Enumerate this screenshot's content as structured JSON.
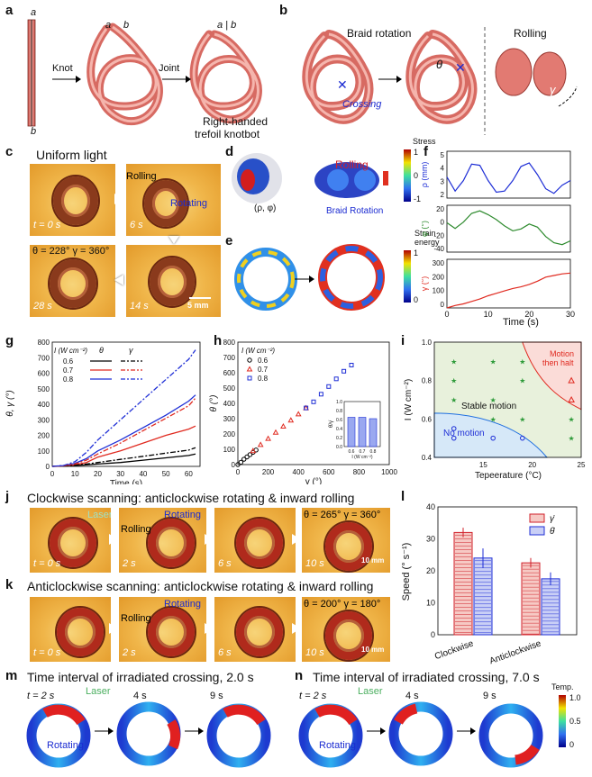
{
  "panels": {
    "a": {
      "label": "a",
      "strand_end_top": "a",
      "strand_end_bottom": "b",
      "knot_end_a": "a",
      "knot_end_b": "b",
      "joint_end": "a | b",
      "step1": "Knot",
      "step2": "Joint",
      "caption_line1": "Right-handed",
      "caption_line2": "trefoil knotbot"
    },
    "b": {
      "label": "b",
      "title1": "Braid rotation",
      "title2": "Rolling",
      "crossing": "Crossing",
      "theta": "θ",
      "gamma": "γ"
    },
    "c": {
      "label": "c",
      "title": "Uniform light",
      "times": [
        "t = 0 s",
        "6 s",
        "28 s",
        "14 s"
      ],
      "rolling": "Rolling",
      "rotating": "Rotating",
      "angles": "θ = 228°  γ = 360°",
      "scale": "5 mm"
    },
    "d": {
      "label": "d",
      "rolling": "Rolling",
      "braid": "Braid Rotation",
      "rho": "(ρ, φ)",
      "colorbar_title": "Stress",
      "cb_top": "1",
      "cb_mid": "0",
      "cb_bot": "-1"
    },
    "e": {
      "label": "e",
      "colorbar_title_1": "Strain",
      "colorbar_title_2": "energy",
      "cb_top": "1",
      "cb_bot": "0"
    },
    "f": {
      "label": "f",
      "xlabel": "Time (s)",
      "rho_label": "ρ (mm)",
      "phi_label": "φ (°)",
      "gamma_label": "γ (°)",
      "xticks": [
        "0",
        "10",
        "20",
        "30"
      ],
      "rho_ticks": [
        "5",
        "4",
        "3",
        "2"
      ],
      "phi_ticks": [
        "20",
        "0",
        "-20",
        "-40"
      ],
      "gamma_ticks": [
        "300",
        "200",
        "100",
        "0"
      ]
    },
    "g": {
      "label": "g",
      "xlabel": "Time (s)",
      "ylabel": "θ, γ (°)",
      "legend_I": "I (W cm⁻²)",
      "legend_theta": "θ",
      "legend_gamma": "γ",
      "legend_vals": [
        "0.6",
        "0.7",
        "0.8"
      ],
      "xticks": [
        "0",
        "10",
        "20",
        "30",
        "40",
        "50",
        "60"
      ],
      "yticks": [
        "800",
        "700",
        "600",
        "500",
        "400",
        "300",
        "200",
        "100",
        "0"
      ]
    },
    "h": {
      "label": "h",
      "xlabel": "γ (°)",
      "ylabel": "θ (°)",
      "legend_I": "I (W cm⁻²)",
      "legend_vals": [
        "0.6",
        "0.7",
        "0.8"
      ],
      "xticks": [
        "0",
        "200",
        "400",
        "600",
        "800",
        "1000"
      ],
      "yticks": [
        "800",
        "700",
        "600",
        "500",
        "400",
        "300",
        "200",
        "100",
        "0"
      ],
      "inset_ylabel": "θ̇/γ̇",
      "inset_xlabel": "I (W cm⁻²)",
      "inset_xticks": [
        "0.6",
        "0.7",
        "0.8"
      ],
      "inset_yticks": [
        "1.0",
        "0.8",
        "0.6",
        "0.4",
        "0.2",
        "0.0"
      ]
    },
    "i": {
      "label": "i",
      "xlabel": "Tepeerature (°C)",
      "ylabel": "I (W cm⁻²)",
      "stable": "Stable motion",
      "nomotion": "No motion",
      "halt1": "Motion",
      "halt2": "then halt",
      "xticks": [
        "15",
        "20",
        "25"
      ],
      "yticks": [
        "1.0",
        "0.8",
        "0.6",
        "0.4"
      ]
    },
    "j": {
      "label": "j",
      "title": "Clockwise scanning: anticlockwise rotating & inward rolling",
      "times": [
        "t = 0 s",
        "2 s",
        "6 s",
        "10 s"
      ],
      "laser": "Laser",
      "rolling": "Rolling",
      "rotating": "Rotating",
      "angles": "θ = 265°  γ = 360°",
      "scale": "10 mm"
    },
    "k": {
      "label": "k",
      "title": "Anticlockwise scanning: anticlockwise rotating & inward rolling",
      "times": [
        "t = 0 s",
        "2 s",
        "6 s",
        "10 s"
      ],
      "rolling": "Rolling",
      "rotating": "Rotating",
      "angles": "θ = 200°  γ = 180°",
      "scale": "10 mm"
    },
    "l": {
      "label": "l",
      "ylabel": "Speed (° s⁻¹)",
      "legend_gamma": "γ̇",
      "legend_theta": "θ̇",
      "xcats": [
        "Clockwise",
        "Anticlockwise"
      ],
      "yticks": [
        "40",
        "30",
        "20",
        "10",
        "0"
      ]
    },
    "m": {
      "label": "m",
      "title": "Time interval of irradiated crossing, 2.0 s",
      "times": [
        "t = 2 s",
        "4 s",
        "9 s"
      ],
      "laser": "Laser",
      "rotating": "Rotating"
    },
    "n": {
      "label": "n",
      "title": "Time interval of irradiated crossing, 7.0 s",
      "times": [
        "t = 2 s",
        "4 s",
        "9 s"
      ],
      "laser": "Laser",
      "rotating": "Rotating",
      "cb_title": "Temp.",
      "cb_ticks": [
        "1.0",
        "0.5",
        "0"
      ]
    }
  },
  "chart_data": [
    {
      "type": "line",
      "panel": "f",
      "xlabel": "Time (s)",
      "xlim": [
        0,
        30
      ],
      "series": [
        {
          "name": "ρ (mm)",
          "ylim": [
            1.5,
            5.5
          ],
          "x": [
            0,
            2,
            4,
            6,
            8,
            10,
            12,
            14,
            16,
            18,
            20,
            22,
            24,
            26,
            28,
            30
          ],
          "values": [
            3.3,
            2.1,
            3.0,
            4.4,
            4.3,
            3.0,
            2.0,
            2.1,
            3.0,
            4.2,
            4.5,
            3.5,
            2.3,
            1.9,
            2.6,
            3.0
          ]
        },
        {
          "name": "φ (°)",
          "ylim": [
            -50,
            25
          ],
          "x": [
            0,
            2,
            4,
            6,
            8,
            10,
            12,
            14,
            16,
            18,
            20,
            22,
            24,
            26,
            28,
            30
          ],
          "values": [
            -3,
            -12,
            -2,
            12,
            16,
            10,
            2,
            -8,
            -16,
            -13,
            -5,
            -10,
            -25,
            -35,
            -38,
            -32
          ]
        },
        {
          "name": "γ (°)",
          "ylim": [
            0,
            300
          ],
          "x": [
            0,
            2,
            4,
            6,
            8,
            10,
            12,
            14,
            16,
            18,
            20,
            22,
            24,
            26,
            28,
            30
          ],
          "values": [
            0,
            15,
            25,
            40,
            55,
            75,
            90,
            105,
            120,
            130,
            145,
            165,
            190,
            200,
            210,
            215
          ]
        }
      ]
    },
    {
      "type": "line",
      "panel": "g",
      "xlabel": "Time (s)",
      "ylabel": "θ, γ (°)",
      "xlim": [
        0,
        65
      ],
      "ylim": [
        0,
        800
      ],
      "x": [
        0,
        5,
        10,
        15,
        20,
        30,
        40,
        50,
        60,
        63
      ],
      "series": [
        {
          "name": "θ 0.6",
          "values": [
            0,
            2,
            6,
            10,
            15,
            25,
            40,
            55,
            70,
            80
          ]
        },
        {
          "name": "θ 0.7",
          "values": [
            0,
            3,
            10,
            25,
            60,
            100,
            150,
            200,
            240,
            260
          ]
        },
        {
          "name": "θ 0.8",
          "values": [
            0,
            5,
            20,
            50,
            100,
            170,
            250,
            330,
            420,
            460
          ]
        },
        {
          "name": "γ 0.6",
          "values": [
            0,
            2,
            7,
            15,
            25,
            45,
            65,
            85,
            105,
            120
          ]
        },
        {
          "name": "γ 0.7",
          "values": [
            0,
            4,
            15,
            40,
            80,
            150,
            230,
            310,
            390,
            440
          ]
        },
        {
          "name": "γ 0.8",
          "values": [
            0,
            6,
            30,
            90,
            170,
            300,
            430,
            560,
            690,
            750
          ]
        }
      ]
    },
    {
      "type": "scatter",
      "panel": "h",
      "xlabel": "γ (°)",
      "ylabel": "θ (°)",
      "xlim": [
        0,
        1000
      ],
      "ylim": [
        0,
        800
      ],
      "series": [
        {
          "name": "0.6",
          "marker": "circle",
          "x": [
            0,
            20,
            40,
            60,
            80,
            100,
            120
          ],
          "values": [
            0,
            15,
            35,
            50,
            65,
            80,
            95
          ]
        },
        {
          "name": "0.7",
          "marker": "triangle",
          "x": [
            100,
            150,
            200,
            250,
            300,
            350,
            400,
            450
          ],
          "values": [
            90,
            130,
            170,
            210,
            250,
            290,
            330,
            370
          ]
        },
        {
          "name": "0.8",
          "marker": "square",
          "x": [
            450,
            500,
            550,
            600,
            650,
            700,
            750
          ],
          "values": [
            370,
            410,
            460,
            510,
            560,
            610,
            650
          ]
        }
      ],
      "inset": {
        "type": "bar",
        "categories": [
          "0.6",
          "0.7",
          "0.8"
        ],
        "values": [
          0.65,
          0.65,
          0.62
        ],
        "ylim": [
          0,
          1.0
        ]
      }
    },
    {
      "type": "scatter",
      "panel": "i",
      "xlabel": "Tepeerature (°C)",
      "ylabel": "I (W cm⁻²)",
      "xlim": [
        10,
        25
      ],
      "ylim": [
        0.4,
        1.0
      ],
      "series": [
        {
          "name": "Stable motion",
          "marker": "star",
          "x": [
            12,
            12,
            12,
            16,
            16,
            16,
            19,
            19,
            19,
            24,
            24
          ],
          "values": [
            0.9,
            0.8,
            0.7,
            0.9,
            0.7,
            0.6,
            0.9,
            0.8,
            0.6,
            0.6,
            0.5
          ]
        },
        {
          "name": "No motion",
          "marker": "circle",
          "x": [
            12,
            12,
            16,
            19
          ],
          "values": [
            0.55,
            0.5,
            0.5,
            0.5
          ]
        },
        {
          "name": "Motion then halt",
          "marker": "triangle",
          "x": [
            24,
            24
          ],
          "values": [
            0.8,
            0.7
          ]
        }
      ]
    },
    {
      "type": "bar",
      "panel": "l",
      "ylabel": "Speed (° s⁻¹)",
      "categories": [
        "Clockwise",
        "Anticlockwise"
      ],
      "ylim": [
        0,
        40
      ],
      "series": [
        {
          "name": "γ̇",
          "values": [
            32,
            22.5
          ],
          "errors": [
            1.5,
            1.5
          ]
        },
        {
          "name": "θ̇",
          "values": [
            24,
            17.5
          ],
          "errors": [
            3,
            2
          ]
        }
      ]
    }
  ]
}
